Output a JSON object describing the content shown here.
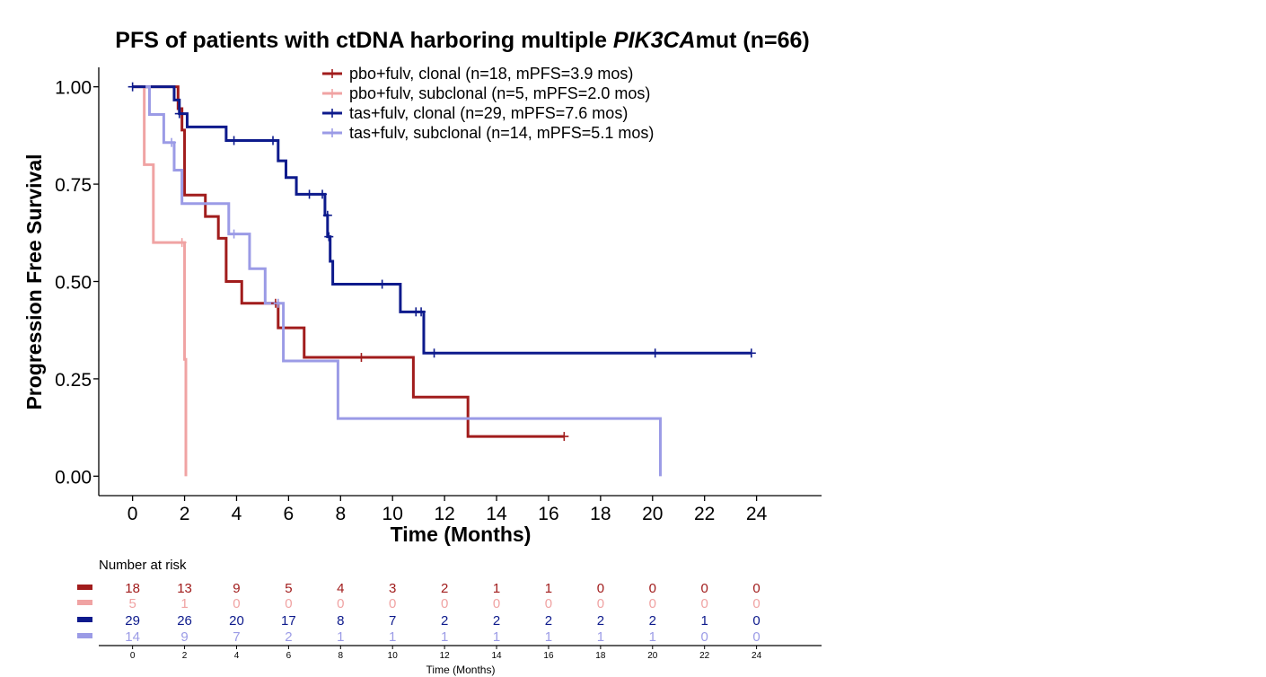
{
  "chart_data": {
    "type": "line",
    "subtype": "kaplan-meier",
    "title_prefix": "PFS of patients with ctDNA harboring multiple ",
    "title_italic": "PIK3CA",
    "title_suffix": "mut (n=66)",
    "xlabel": "Time (Months)",
    "ylabel": "Progression Free Survival",
    "xlim": [
      -1.3,
      26.5
    ],
    "ylim": [
      -0.05,
      1.05
    ],
    "x_ticks": [
      0,
      2,
      4,
      6,
      8,
      10,
      12,
      14,
      16,
      18,
      20,
      22,
      24
    ],
    "y_ticks": [
      0.0,
      0.25,
      0.5,
      0.75,
      1.0
    ],
    "y_tick_labels": [
      "0.00",
      "0.25",
      "0.50",
      "0.75",
      "1.00"
    ],
    "grid": false,
    "legend_position": "top-center",
    "series": [
      {
        "name": "pbo+fulv, clonal (n=18, mPFS=3.9 mos)",
        "color": "#a11c1c",
        "steps": [
          [
            0,
            1.0
          ],
          [
            1.65,
            1.0
          ],
          [
            1.75,
            0.944
          ],
          [
            1.9,
            0.889
          ],
          [
            2.0,
            0.722
          ],
          [
            2.8,
            0.722
          ],
          [
            2.8,
            0.667
          ],
          [
            3.3,
            0.667
          ],
          [
            3.3,
            0.611
          ],
          [
            3.6,
            0.611
          ],
          [
            3.6,
            0.5
          ],
          [
            4.2,
            0.5
          ],
          [
            4.2,
            0.444
          ],
          [
            5.5,
            0.444
          ],
          [
            5.6,
            0.381
          ],
          [
            6.6,
            0.381
          ],
          [
            6.6,
            0.305
          ],
          [
            10.8,
            0.305
          ],
          [
            10.8,
            0.203
          ],
          [
            12.9,
            0.203
          ],
          [
            12.9,
            0.102
          ],
          [
            16.6,
            0.102
          ]
        ],
        "censor": [
          [
            5.5,
            0.444
          ],
          [
            8.8,
            0.305
          ],
          [
            16.6,
            0.102
          ]
        ]
      },
      {
        "name": "pbo+fulv, subclonal (n=5, mPFS=2.0 mos)",
        "color": "#f0a3a3",
        "steps": [
          [
            0.4,
            1.0
          ],
          [
            0.45,
            0.8
          ],
          [
            0.8,
            0.8
          ],
          [
            0.8,
            0.6
          ],
          [
            2.0,
            0.6
          ],
          [
            2.0,
            0.3
          ],
          [
            2.05,
            0.3
          ],
          [
            2.05,
            0.0
          ]
        ],
        "censor": [
          [
            1.9,
            0.6
          ]
        ]
      },
      {
        "name": "tas+fulv, clonal (n=29, mPFS=7.6 mos)",
        "color": "#0d1a8c",
        "steps": [
          [
            0,
            1.0
          ],
          [
            1.6,
            1.0
          ],
          [
            1.6,
            0.966
          ],
          [
            1.8,
            0.931
          ],
          [
            2.1,
            0.897
          ],
          [
            3.6,
            0.897
          ],
          [
            3.6,
            0.862
          ],
          [
            5.6,
            0.862
          ],
          [
            5.6,
            0.81
          ],
          [
            5.9,
            0.81
          ],
          [
            5.9,
            0.767
          ],
          [
            6.3,
            0.767
          ],
          [
            6.3,
            0.724
          ],
          [
            7.4,
            0.724
          ],
          [
            7.4,
            0.67
          ],
          [
            7.5,
            0.67
          ],
          [
            7.5,
            0.615
          ],
          [
            7.6,
            0.615
          ],
          [
            7.6,
            0.552
          ],
          [
            7.7,
            0.552
          ],
          [
            7.7,
            0.493
          ],
          [
            10.3,
            0.493
          ],
          [
            10.3,
            0.422
          ],
          [
            11.2,
            0.422
          ],
          [
            11.2,
            0.316
          ],
          [
            23.8,
            0.316
          ]
        ],
        "censor": [
          [
            0,
            1.0
          ],
          [
            1.8,
            0.931
          ],
          [
            3.9,
            0.862
          ],
          [
            5.4,
            0.862
          ],
          [
            6.8,
            0.724
          ],
          [
            7.3,
            0.724
          ],
          [
            7.5,
            0.67
          ],
          [
            7.55,
            0.615
          ],
          [
            9.6,
            0.493
          ],
          [
            10.9,
            0.422
          ],
          [
            11.1,
            0.422
          ],
          [
            11.6,
            0.316
          ],
          [
            20.1,
            0.316
          ],
          [
            23.8,
            0.316
          ]
        ]
      },
      {
        "name": "tas+fulv, subclonal (n=14, mPFS=5.1 mos)",
        "color": "#9b9be6",
        "steps": [
          [
            0.5,
            1.0
          ],
          [
            0.65,
            0.929
          ],
          [
            1.2,
            0.929
          ],
          [
            1.2,
            0.857
          ],
          [
            1.6,
            0.857
          ],
          [
            1.6,
            0.786
          ],
          [
            1.9,
            0.786
          ],
          [
            1.9,
            0.7
          ],
          [
            3.7,
            0.7
          ],
          [
            3.7,
            0.622
          ],
          [
            4.5,
            0.622
          ],
          [
            4.5,
            0.533
          ],
          [
            5.1,
            0.533
          ],
          [
            5.1,
            0.444
          ],
          [
            5.8,
            0.444
          ],
          [
            5.8,
            0.296
          ],
          [
            7.9,
            0.296
          ],
          [
            7.9,
            0.148
          ],
          [
            20.3,
            0.148
          ],
          [
            20.3,
            0.0
          ]
        ],
        "censor": [
          [
            1.5,
            0.857
          ],
          [
            3.9,
            0.622
          ],
          [
            5.6,
            0.444
          ]
        ]
      }
    ],
    "risk_table": {
      "title": "Number at risk",
      "xlabel": "Time (Months)",
      "times": [
        0,
        2,
        4,
        6,
        8,
        10,
        12,
        14,
        16,
        18,
        20,
        22,
        24
      ],
      "rows": [
        {
          "color": "#a11c1c",
          "values": [
            "18",
            "13",
            "9",
            "5",
            "4",
            "3",
            "2",
            "1",
            "1",
            "0",
            "0",
            "0",
            "0"
          ]
        },
        {
          "color": "#f0a3a3",
          "values": [
            "5",
            "1",
            "0",
            "0",
            "0",
            "0",
            "0",
            "0",
            "0",
            "0",
            "0",
            "0",
            "0"
          ]
        },
        {
          "color": "#0d1a8c",
          "values": [
            "29",
            "26",
            "20",
            "17",
            "8",
            "7",
            "2",
            "2",
            "2",
            "2",
            "2",
            "1",
            "0"
          ]
        },
        {
          "color": "#9b9be6",
          "values": [
            "14",
            "9",
            "7",
            "2",
            "1",
            "1",
            "1",
            "1",
            "1",
            "1",
            "1",
            "0",
            "0"
          ]
        }
      ]
    }
  }
}
